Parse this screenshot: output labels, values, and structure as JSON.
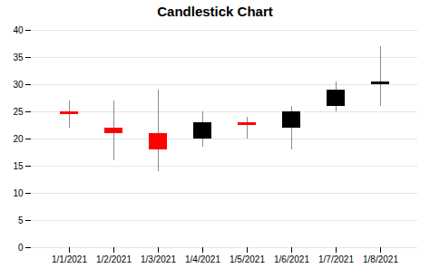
{
  "chart_data": {
    "type": "candlestick",
    "title": "Candlestick Chart",
    "categories": [
      "1/1/2021",
      "1/2/2021",
      "1/3/2021",
      "1/4/2021",
      "1/5/2021",
      "1/6/2021",
      "1/7/2021",
      "1/8/2021"
    ],
    "open": [
      25.0,
      22.0,
      21.0,
      20.0,
      23.0,
      22.0,
      26.0,
      30.0
    ],
    "high": [
      27.0,
      27.0,
      29.0,
      25.0,
      24.0,
      26.0,
      30.5,
      37.0
    ],
    "low": [
      22.0,
      16.0,
      14.0,
      18.5,
      20.0,
      18.0,
      25.0,
      26.0
    ],
    "close": [
      24.5,
      21.0,
      18.0,
      23.0,
      22.5,
      25.0,
      29.0,
      30.5
    ],
    "colors": [
      "#ff0000",
      "#ff0000",
      "#ff0000",
      "#000000",
      "#ff0000",
      "#000000",
      "#000000",
      "#000000"
    ],
    "ylim": [
      0,
      40
    ],
    "yticks": [
      0,
      5,
      10,
      15,
      20,
      25,
      30,
      35,
      40
    ],
    "grid": true
  }
}
